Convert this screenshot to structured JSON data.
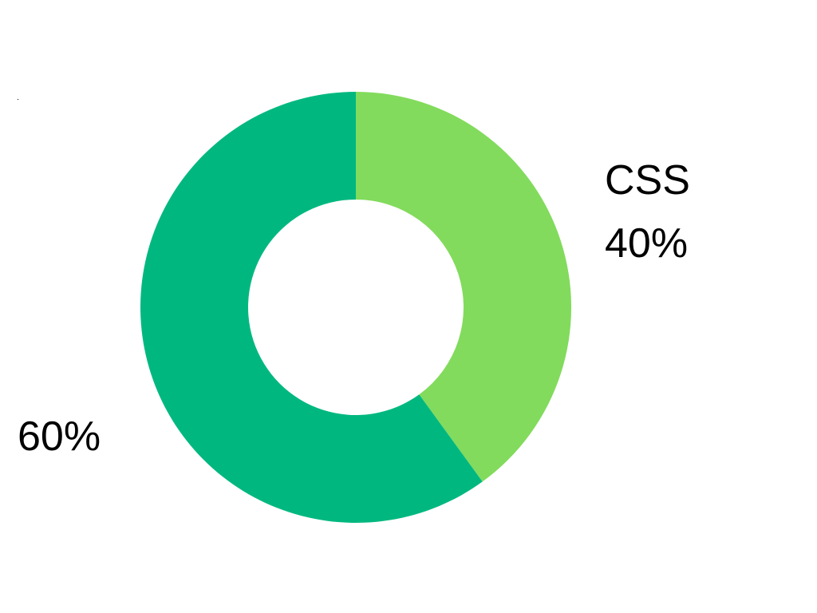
{
  "chart_data": {
    "type": "pie",
    "variant": "donut",
    "slices": [
      {
        "name": "CSS",
        "value": 40,
        "label": "40%",
        "color": "#82DB5C"
      },
      {
        "name": "",
        "value": 60,
        "label": "60%",
        "color": "#00B87F"
      }
    ]
  }
}
